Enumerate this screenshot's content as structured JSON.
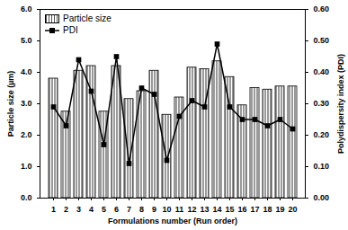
{
  "chart_data": {
    "type": "bar",
    "x_label": "Formulations number (Run order)",
    "y_label": "Particle size (µm)",
    "y2_label": "Polydispersity index (PDI)",
    "categories": [
      1,
      2,
      3,
      4,
      5,
      6,
      7,
      8,
      9,
      10,
      11,
      12,
      13,
      14,
      15,
      16,
      17,
      18,
      19,
      20
    ],
    "series": [
      {
        "name": "Particle size",
        "type": "bar",
        "color": "#555555",
        "values": [
          3.8,
          2.75,
          4.05,
          4.2,
          2.75,
          4.2,
          3.15,
          3.4,
          4.05,
          2.65,
          3.2,
          4.15,
          4.1,
          4.35,
          3.85,
          2.95,
          3.5,
          3.45,
          3.55,
          3.55
        ]
      },
      {
        "name": "PDI",
        "type": "line",
        "axis": "y2",
        "color": "#000000",
        "marker": "square",
        "values": [
          0.29,
          0.23,
          0.44,
          0.34,
          0.17,
          0.45,
          0.11,
          0.35,
          0.33,
          0.12,
          0.26,
          0.31,
          0.29,
          0.49,
          0.29,
          0.25,
          0.25,
          0.23,
          0.25,
          0.22
        ]
      }
    ],
    "ylim": [
      0,
      6
    ],
    "yticks": [
      {
        "value": 0,
        "label": "0.0"
      },
      {
        "value": 1,
        "label": "1.0"
      },
      {
        "value": 2,
        "label": "2.0"
      },
      {
        "value": 3,
        "label": "3.0"
      },
      {
        "value": 4,
        "label": "4.0"
      },
      {
        "value": 5,
        "label": "5.0"
      },
      {
        "value": 6,
        "label": "6.0"
      }
    ],
    "y2lim": [
      0,
      0.6
    ],
    "y2ticks": [
      {
        "value": 0,
        "label": "0.00"
      },
      {
        "value": 0.1,
        "label": "0.10"
      },
      {
        "value": 0.2,
        "label": "0.20"
      },
      {
        "value": 0.3,
        "label": "0.30"
      },
      {
        "value": 0.4,
        "label": "0.40"
      },
      {
        "value": 0.5,
        "label": "0.50"
      },
      {
        "value": 0.6,
        "label": "0.60"
      }
    ],
    "legend": "top-left",
    "grid": false
  }
}
